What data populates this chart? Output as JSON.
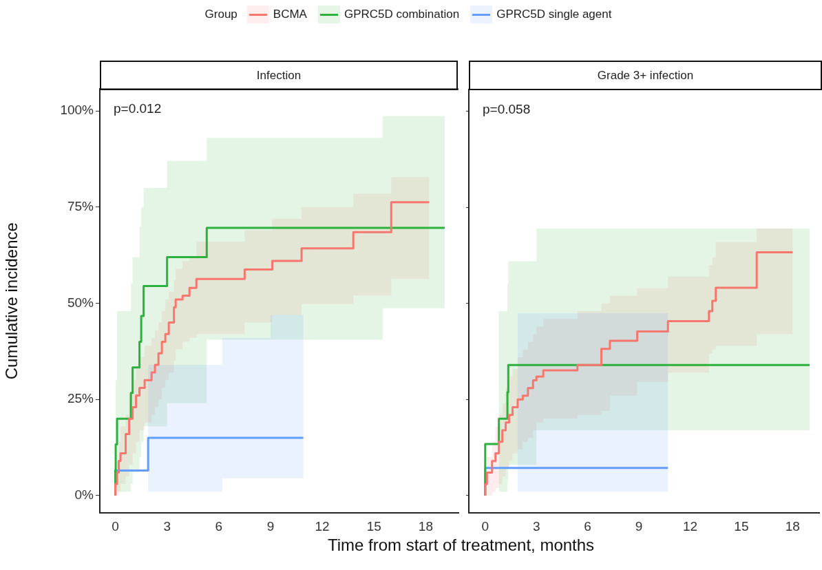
{
  "chart_data": [
    {
      "type": "step",
      "title": "Infection",
      "xlabel": "Time from start of treatment, months",
      "ylabel": "Cumulative incidence",
      "legend_title": "Group",
      "legend": "top",
      "xlim": [
        -0.9,
        19.9
      ],
      "xticks": [
        0,
        3,
        6,
        9,
        12,
        15,
        18
      ],
      "ylim": [
        -4.5,
        105.7
      ],
      "yticks": [
        {
          "value": 0,
          "label": "0%"
        },
        {
          "value": 25,
          "label": "25%"
        },
        {
          "value": 50,
          "label": "50%"
        },
        {
          "value": 75,
          "label": "75%"
        },
        {
          "value": 100,
          "label": "100%"
        }
      ],
      "annotations": [
        "p=0.012"
      ],
      "series": [
        {
          "name": "BCMA",
          "color": "#f8766d",
          "x": [
            0,
            0.1,
            0.2,
            0.3,
            0.6,
            0.8,
            1.0,
            1.2,
            1.4,
            1.7,
            2.1,
            2.3,
            2.5,
            2.7,
            2.9,
            3.1,
            3.4,
            3.5,
            3.9,
            4.3,
            4.7,
            7.5,
            9.1,
            10.8,
            13.8,
            16,
            18.2
          ],
          "values": [
            0,
            3,
            6,
            9,
            11,
            16,
            20,
            23,
            26,
            28,
            30,
            32,
            34,
            37,
            40,
            42,
            45,
            49,
            51,
            52,
            54,
            56.3,
            58.8,
            61,
            64.3,
            68.5,
            76.3
          ],
          "upper": [
            0,
            9,
            14,
            18,
            21,
            26,
            30,
            33,
            36,
            39,
            41,
            43,
            45,
            48,
            51,
            53,
            56,
            59,
            61,
            62,
            66,
            69,
            72,
            75,
            78.5,
            82.8,
            82.8
          ],
          "lower": [
            0,
            0,
            1,
            3,
            5,
            8,
            11,
            14,
            17,
            19,
            21,
            23,
            25,
            28,
            30,
            32,
            35,
            38,
            40,
            41,
            42,
            45,
            47,
            49.8,
            52,
            56.3,
            56.3
          ]
        },
        {
          "name": "GPRC5D combination",
          "color": "#2cb13c",
          "x": [
            0,
            0.02,
            0.1,
            0.9,
            1.0,
            1.4,
            1.5,
            1.64,
            3.0,
            5.3,
            15.5,
            19.1
          ],
          "values": [
            0,
            6.7,
            13.3,
            20,
            26.7,
            33.3,
            40,
            46.7,
            54.5,
            62,
            69.6,
            69.6
          ],
          "upper": [
            0,
            30,
            48,
            55,
            62,
            70,
            75,
            80,
            87,
            93,
            98.7,
            98.7
          ],
          "lower": [
            0,
            0,
            1,
            3,
            6,
            10,
            14,
            18,
            24,
            40.5,
            48.7,
            48.7
          ]
        },
        {
          "name": "GPRC5D single agent",
          "color": "#619cff",
          "x": [
            0,
            1.9,
            6.2,
            9,
            10.9
          ],
          "values": [
            0,
            6.5,
            15,
            15,
            15
          ],
          "upper": [
            0,
            34,
            41,
            47,
            47
          ],
          "lower": [
            0,
            1,
            4.5,
            4.5,
            4.5
          ]
        }
      ]
    },
    {
      "type": "step",
      "title": "Grade 3+ infection",
      "tick_labels": "x",
      "xlim": [
        -0.96,
        19.56
      ],
      "xticks": [
        0,
        3,
        6,
        9,
        12,
        15,
        18
      ],
      "ylim": [
        -4.5,
        105.7
      ],
      "yticks": [
        0,
        25,
        50,
        75,
        100
      ],
      "annotations": [
        "p=0.058"
      ],
      "series": [
        {
          "name": "BCMA",
          "color": "#f8766d",
          "x": [
            0,
            0.1,
            0.4,
            0.6,
            0.8,
            1.0,
            1.2,
            1.4,
            1.6,
            1.9,
            2.2,
            2.5,
            2.8,
            3.0,
            3.4,
            5.4,
            6.8,
            7.3,
            8.9,
            10.7,
            13.1,
            13.3,
            13.5,
            15.9,
            18.0
          ],
          "values": [
            0,
            3,
            6,
            9,
            11,
            14,
            17,
            19,
            21,
            23,
            25,
            26,
            28,
            30,
            31,
            32.6,
            34,
            38.2,
            40.3,
            42.7,
            45.4,
            48,
            50.7,
            54.1,
            63.3
          ],
          "upper": [
            0,
            10,
            14,
            18,
            21,
            24,
            28,
            31,
            33,
            36,
            38,
            40,
            42,
            44,
            46,
            48,
            50,
            52,
            54,
            57,
            60,
            62,
            66,
            69.5,
            69.5
          ],
          "lower": [
            0,
            0,
            1,
            2,
            3,
            5,
            7,
            9,
            11,
            12,
            14,
            15,
            17,
            19,
            20,
            21,
            22,
            26,
            29.6,
            32,
            37,
            38,
            39,
            42,
            42
          ]
        },
        {
          "name": "GPRC5D combination",
          "color": "#2cb13c",
          "x": [
            0,
            0.8,
            1.3,
            1.35,
            3.0,
            19.0
          ],
          "values": [
            0,
            13.4,
            20,
            26.9,
            34,
            34
          ],
          "upper": [
            0,
            48,
            55,
            61,
            69.5,
            69.5
          ],
          "lower": [
            0,
            1,
            4,
            8,
            17,
            17
          ]
        },
        {
          "name": "GPRC5D single agent",
          "color": "#619cff",
          "x": [
            0,
            1.9,
            10.7
          ],
          "values": [
            0,
            7.2,
            7.2
          ],
          "upper": [
            0,
            47.5,
            47.5
          ],
          "lower": [
            0,
            1,
            1
          ]
        }
      ]
    }
  ]
}
